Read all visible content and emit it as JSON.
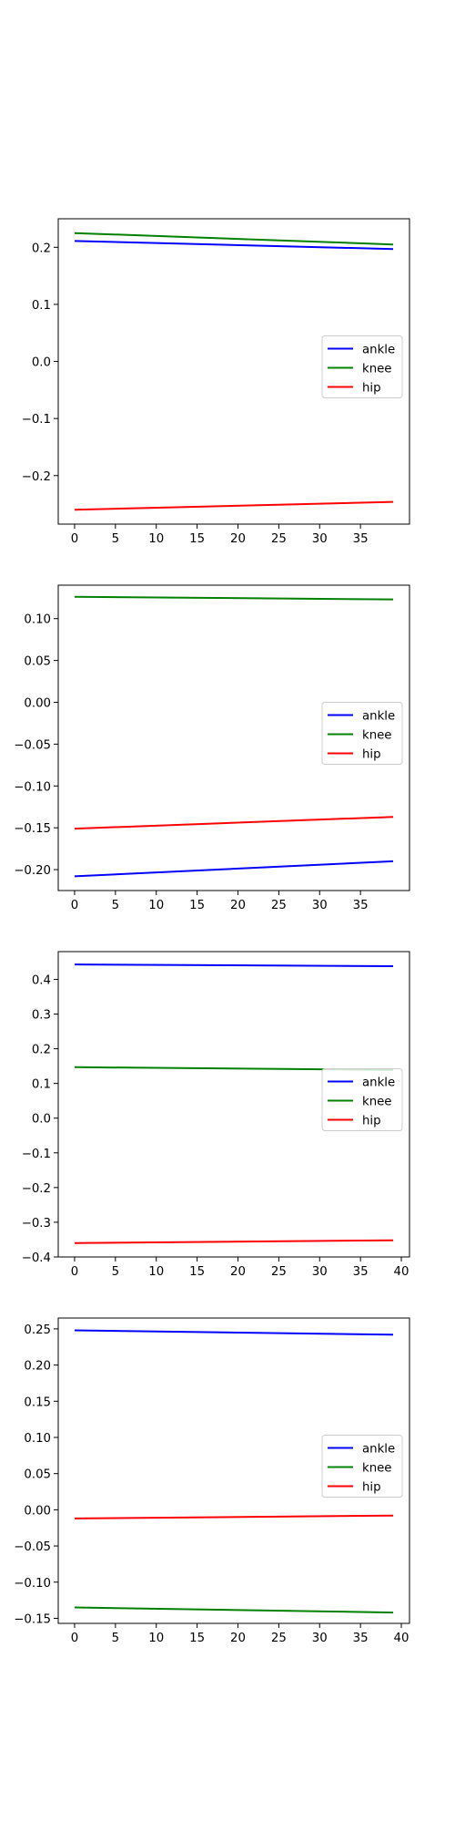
{
  "chart_data": [
    {
      "type": "line",
      "title": "",
      "xlabel": "",
      "ylabel": "",
      "xlim": [
        -2,
        41
      ],
      "ylim": [
        -0.285,
        0.25
      ],
      "xticks": [
        0,
        5,
        10,
        15,
        20,
        25,
        30,
        35
      ],
      "yticks": [
        -0.2,
        -0.1,
        0.0,
        0.1,
        0.2
      ],
      "ytick_labels": [
        "−0.2",
        "−0.1",
        "0.0",
        "0.1",
        "0.2"
      ],
      "grid": false,
      "legend": "center-right",
      "series": [
        {
          "name": "ankle",
          "color": "#0000ff",
          "x": [
            0,
            39
          ],
          "y": [
            0.211,
            0.197
          ]
        },
        {
          "name": "knee",
          "color": "#008000",
          "x": [
            0,
            39
          ],
          "y": [
            0.225,
            0.205
          ]
        },
        {
          "name": "hip",
          "color": "#ff0000",
          "x": [
            0,
            39
          ],
          "y": [
            -0.26,
            -0.246
          ]
        }
      ]
    },
    {
      "type": "line",
      "title": "",
      "xlabel": "",
      "ylabel": "",
      "xlim": [
        -2,
        41
      ],
      "ylim": [
        -0.225,
        0.14
      ],
      "xticks": [
        0,
        5,
        10,
        15,
        20,
        25,
        30,
        35
      ],
      "yticks": [
        -0.2,
        -0.15,
        -0.1,
        -0.05,
        0.0,
        0.05,
        0.1
      ],
      "ytick_labels": [
        "−0.20",
        "−0.15",
        "−0.10",
        "−0.05",
        "0.00",
        "0.05",
        "0.10"
      ],
      "grid": false,
      "legend": "center-right",
      "series": [
        {
          "name": "ankle",
          "color": "#0000ff",
          "x": [
            0,
            39
          ],
          "y": [
            -0.208,
            -0.19
          ]
        },
        {
          "name": "knee",
          "color": "#008000",
          "x": [
            0,
            39
          ],
          "y": [
            0.126,
            0.123
          ]
        },
        {
          "name": "hip",
          "color": "#ff0000",
          "x": [
            0,
            39
          ],
          "y": [
            -0.151,
            -0.137
          ]
        }
      ]
    },
    {
      "type": "line",
      "title": "",
      "xlabel": "",
      "ylabel": "",
      "xlim": [
        -2,
        41
      ],
      "ylim": [
        -0.4,
        0.48
      ],
      "xticks": [
        0,
        5,
        10,
        15,
        20,
        25,
        30,
        35,
        40
      ],
      "yticks": [
        -0.4,
        -0.3,
        -0.2,
        -0.1,
        0.0,
        0.1,
        0.2,
        0.3,
        0.4
      ],
      "ytick_labels": [
        "−0.4",
        "−0.3",
        "−0.2",
        "−0.1",
        "0.0",
        "0.1",
        "0.2",
        "0.3",
        "0.4"
      ],
      "grid": false,
      "legend": "center-right",
      "series": [
        {
          "name": "ankle",
          "color": "#0000ff",
          "x": [
            0,
            39
          ],
          "y": [
            0.443,
            0.438
          ]
        },
        {
          "name": "knee",
          "color": "#008000",
          "x": [
            0,
            39
          ],
          "y": [
            0.147,
            0.139
          ]
        },
        {
          "name": "hip",
          "color": "#ff0000",
          "x": [
            0,
            39
          ],
          "y": [
            -0.36,
            -0.352
          ]
        }
      ]
    },
    {
      "type": "line",
      "title": "",
      "xlabel": "",
      "ylabel": "",
      "xlim": [
        -2,
        41
      ],
      "ylim": [
        -0.157,
        0.265
      ],
      "xticks": [
        0,
        5,
        10,
        15,
        20,
        25,
        30,
        35,
        40
      ],
      "yticks": [
        -0.15,
        -0.1,
        -0.05,
        0.0,
        0.05,
        0.1,
        0.15,
        0.2,
        0.25
      ],
      "ytick_labels": [
        "−0.15",
        "−0.10",
        "−0.05",
        "0.00",
        "0.05",
        "0.10",
        "0.15",
        "0.20",
        "0.25"
      ],
      "grid": false,
      "legend": "center-right",
      "series": [
        {
          "name": "ankle",
          "color": "#0000ff",
          "x": [
            0,
            39
          ],
          "y": [
            0.248,
            0.242
          ]
        },
        {
          "name": "knee",
          "color": "#008000",
          "x": [
            0,
            39
          ],
          "y": [
            -0.135,
            -0.142
          ]
        },
        {
          "name": "hip",
          "color": "#ff0000",
          "x": [
            0,
            39
          ],
          "y": [
            -0.012,
            -0.008
          ]
        }
      ]
    }
  ]
}
